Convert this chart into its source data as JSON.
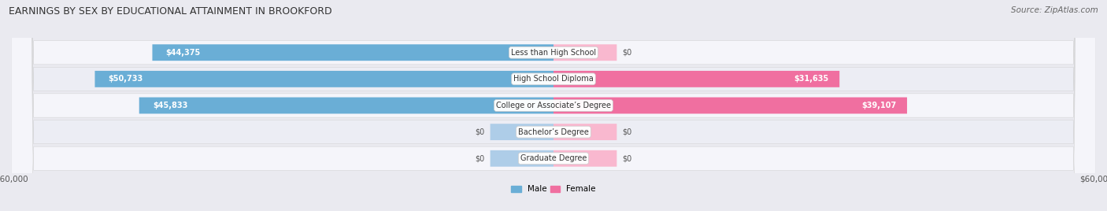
{
  "title": "EARNINGS BY SEX BY EDUCATIONAL ATTAINMENT IN BROOKFORD",
  "source": "Source: ZipAtlas.com",
  "categories": [
    "Less than High School",
    "High School Diploma",
    "College or Associate’s Degree",
    "Bachelor’s Degree",
    "Graduate Degree"
  ],
  "male_values": [
    44375,
    50733,
    45833,
    0,
    0
  ],
  "female_values": [
    0,
    31635,
    39107,
    0,
    0
  ],
  "male_color": "#6AAED6",
  "male_color_light": "#AECDE8",
  "female_color": "#F06FA0",
  "female_color_light": "#F9B8CF",
  "male_label": "Male",
  "female_label": "Female",
  "xlim": 60000,
  "stub_value": 7000,
  "background_color": "#EAEAF0",
  "row_color_odd": "#F5F5FA",
  "row_color_even": "#ECEDF4",
  "title_fontsize": 9,
  "source_fontsize": 7.5,
  "bar_label_fontsize": 7,
  "category_fontsize": 7,
  "axis_label_fontsize": 7.5
}
